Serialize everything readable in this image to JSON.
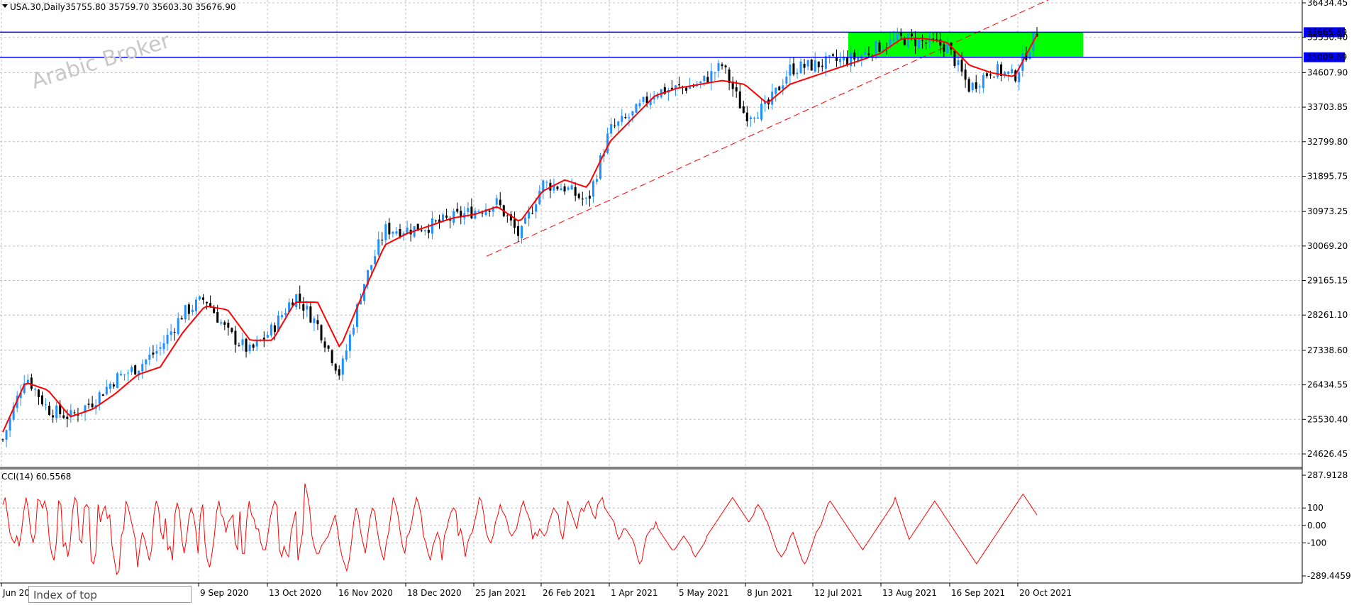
{
  "header": {
    "symbol_label": "USA.30,Daily",
    "ohlc": "35755.80 35759.70 35603.30 35676.90"
  },
  "watermark": "Arabic Broker",
  "tooltip": "Index of top",
  "indicator": {
    "label": "CCI(14) 60.5568"
  },
  "colors": {
    "bull_candle": "#1e90ff",
    "bear_candle": "#000000",
    "moving_average": "#ff0000",
    "trendline": "#ff0000",
    "horizontal_lines": "#0000ff",
    "zone": "#00ff00",
    "grid": "#c0c0c0",
    "cci_line": "#ff0000"
  },
  "chart_data": {
    "type": "candlestick",
    "symbol": "USA.30",
    "timeframe": "Daily",
    "price_axis_ticks": [
      "36434.45",
      "35530.40",
      "34607.90",
      "33703.85",
      "32799.80",
      "31895.75",
      "30973.25",
      "30069.20",
      "29165.15",
      "28261.10",
      "27338.60",
      "26434.55",
      "25530.40",
      "24626.45"
    ],
    "price_axis_values": [
      36434.45,
      35530.4,
      34607.9,
      33703.85,
      32799.8,
      31895.75,
      30973.25,
      30069.2,
      29165.15,
      28261.1,
      27338.6,
      26434.55,
      25530.4,
      24626.45
    ],
    "date_axis_labels": [
      "Jun 20",
      "9 Sep 2020",
      "13 Oct 2020",
      "16 Nov 2020",
      "18 Dec 2020",
      "25 Jan 2021",
      "26 Feb 2021",
      "1 Apr 2021",
      "5 May 2021",
      "8 Jun 2021",
      "12 Jul 2021",
      "13 Aug 2021",
      "16 Sep 2021",
      "20 Oct 2021"
    ],
    "horizontal_levels": [
      {
        "label": "35665.89",
        "value": 35665.89
      },
      {
        "label": "35009.69",
        "value": 35009.69
      }
    ],
    "highlight_zone": {
      "low": 35009.69,
      "high": 35665.89,
      "from": "16 Jul 2021",
      "to": "25 Nov 2021"
    },
    "trendline": {
      "from": {
        "date": "29 Jan 2021",
        "price": 29800
      },
      "to": {
        "date": "21 Oct 2021",
        "price": 35665.89
      }
    },
    "moving_average_close": [
      25200,
      26500,
      26300,
      25600,
      25800,
      26200,
      26700,
      26900,
      27800,
      28500,
      28400,
      27600,
      27600,
      28600,
      28600,
      27400,
      28800,
      30100,
      30400,
      30600,
      30800,
      30900,
      31100,
      30700,
      31500,
      31800,
      31600,
      32800,
      33400,
      34000,
      34200,
      34300,
      34400,
      34300,
      33800,
      34300,
      34500,
      34700,
      34900,
      35100,
      35500,
      35500,
      35400,
      34800,
      34600,
      34500,
      35600
    ],
    "close_series": [
      25000,
      26700,
      25800,
      25600,
      26000,
      26600,
      26900,
      27400,
      28300,
      28700,
      27800,
      27300,
      27900,
      28800,
      28000,
      26700,
      29000,
      30500,
      30500,
      30600,
      30800,
      31000,
      31200,
      30300,
      31700,
      31600,
      31200,
      33100,
      33500,
      34100,
      34200,
      34300,
      34800,
      33500,
      33700,
      34700,
      34800,
      34900,
      35000,
      35300,
      35500,
      35400,
      35300,
      34200,
      34700,
      34500,
      35676.9
    ],
    "cci": {
      "name": "CCI(14)",
      "last_value": 60.5568,
      "axis_ticks": [
        "287.9128",
        "100",
        "0.00",
        "-100",
        "-289.4459"
      ],
      "axis_values": [
        287.9128,
        100,
        0,
        -100,
        -289.4459
      ],
      "values": [
        120,
        160,
        60,
        -40,
        -80,
        -100,
        -60,
        -120,
        -40,
        80,
        160,
        90,
        -40,
        -100,
        -40,
        150,
        140,
        100,
        140,
        80,
        -80,
        -160,
        -200,
        -100,
        140,
        120,
        -120,
        -100,
        -180,
        -100,
        80,
        160,
        130,
        -80,
        -100,
        100,
        120,
        100,
        -200,
        -220,
        -160,
        120,
        20,
        80,
        110,
        40,
        60,
        -120,
        -200,
        -280,
        -260,
        -60,
        -20,
        140,
        100,
        40,
        -20,
        -80,
        -240,
        -120,
        -40,
        -80,
        -140,
        -200,
        -140,
        60,
        140,
        100,
        -40,
        -80,
        40,
        -140,
        -120,
        -200,
        60,
        130,
        80,
        -80,
        -160,
        -80,
        40,
        100,
        60,
        -20,
        -160,
        60,
        120,
        -100,
        -200,
        -240,
        -160,
        -60,
        80,
        140,
        60,
        40,
        -40,
        20,
        40,
        60,
        -100,
        -140,
        80,
        -160,
        -160,
        40,
        140,
        60,
        40,
        -20,
        -20,
        -100,
        -140,
        -140,
        -60,
        40,
        100,
        140,
        110,
        -140,
        -180,
        -120,
        -160,
        -180,
        -40,
        20,
        80,
        -200,
        -120,
        -40,
        240,
        180,
        100,
        -60,
        -120,
        -160,
        -160,
        -120,
        -100,
        -80,
        -60,
        -20,
        20,
        60,
        -20,
        -120,
        -180,
        -220,
        -260,
        -200,
        -100,
        20,
        100,
        60,
        -40,
        -100,
        -160,
        -60,
        40,
        100,
        80,
        -20,
        -100,
        -160,
        -200,
        -100,
        -40,
        60,
        160,
        120,
        60,
        -40,
        -120,
        -160,
        -60,
        -40,
        20,
        100,
        160,
        120,
        60,
        -60,
        -100,
        -160,
        -200,
        -120,
        -80,
        -40,
        -80,
        -200,
        -60,
        -20,
        40,
        80,
        100,
        80,
        -60,
        -20,
        -80,
        -180,
        -100,
        -60,
        -40,
        20,
        80,
        160,
        140,
        60,
        -40,
        -80,
        -100,
        -60,
        20,
        60,
        120,
        80,
        60,
        20,
        -40,
        -60,
        -40,
        -20,
        40,
        100,
        140,
        90,
        60,
        20,
        -80,
        -40,
        -60,
        -20,
        -40,
        -60,
        -40,
        20,
        60,
        100,
        80,
        60,
        -40,
        -80,
        20,
        140,
        100,
        60,
        20,
        -20,
        60,
        100,
        80,
        120,
        140,
        100,
        60,
        40,
        120,
        140,
        160,
        100,
        80,
        60,
        40,
        20,
        -40,
        -80,
        -60,
        -20,
        -20,
        -40,
        -60,
        -80,
        -120,
        -180,
        -220,
        -200,
        -120,
        -60,
        -40,
        -20,
        -20,
        20,
        -20,
        -40,
        -60,
        -80,
        -100,
        -120,
        -140,
        -140,
        -120,
        -100,
        -80,
        -60,
        -80,
        -100,
        -120,
        -160,
        -180,
        -160,
        -140,
        -120,
        -100,
        -60,
        -40,
        -20,
        0,
        20,
        40,
        60,
        80,
        100,
        120,
        140,
        160,
        140,
        120,
        100,
        80,
        60,
        40,
        20,
        40,
        60,
        100,
        120,
        100,
        80,
        40,
        20,
        -20,
        -60,
        -100,
        -140,
        -160,
        -180,
        -160,
        -140,
        -100,
        -60,
        -40,
        -80,
        -120,
        -160,
        -200,
        -220,
        -200,
        -160,
        -120,
        -80,
        -40,
        -20,
        0,
        40,
        80,
        120,
        140,
        120,
        100,
        80,
        60,
        40,
        20,
        0,
        -20,
        -40,
        -60,
        -80,
        -100,
        -120,
        -140,
        -120,
        -100,
        -80,
        -60,
        -40,
        -20,
        0,
        20,
        40,
        60,
        80,
        100,
        120,
        160,
        120,
        80,
        40,
        0,
        -40,
        -80,
        -60,
        -40,
        -20,
        0,
        20,
        40,
        60,
        80,
        100,
        120,
        140,
        120,
        100,
        80,
        60,
        40,
        20,
        0,
        -20,
        -40,
        -60,
        -80,
        -100,
        -120,
        -140,
        -160,
        -180,
        -200,
        -220,
        -200,
        -180,
        -160,
        -140,
        -120,
        -100,
        -80,
        -60,
        -40,
        -20,
        0,
        20,
        40,
        60,
        80,
        100,
        120,
        140,
        160,
        180,
        160,
        140,
        120,
        100,
        80,
        60
      ]
    }
  }
}
